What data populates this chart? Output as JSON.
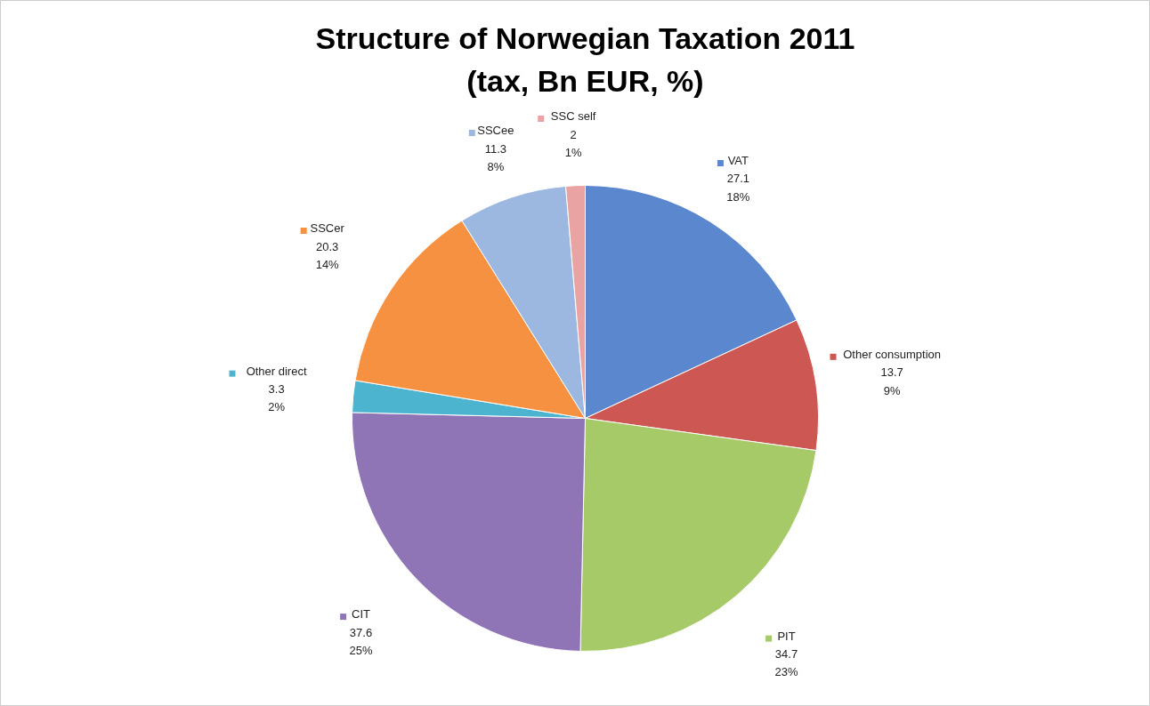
{
  "chart_data": {
    "type": "pie",
    "title": "Structure of Norwegian Taxation 2011\n(tax, Bn EUR, %)",
    "categories": [
      "VAT",
      "Other consumption",
      "PIT",
      "CIT",
      "Other direct",
      "SSCer",
      "SSCee",
      "SSC self"
    ],
    "values": [
      27.1,
      13.7,
      34.7,
      37.6,
      3.3,
      20.3,
      11.3,
      2
    ],
    "value_labels": [
      "27.1\n18%",
      "13.7\n9%",
      "34.7\n23%",
      "37.6\n25%",
      "3.3\n2%",
      "20.3\n14%",
      "11.3\n8%",
      "2\n1%"
    ],
    "legend": "right",
    "colors": [
      "#5b87cf",
      "#cd5753",
      "#a6ca67",
      "#8f74b6",
      "#4db4cf",
      "#f59140",
      "#9db8e0",
      "#eaa3a3"
    ]
  }
}
